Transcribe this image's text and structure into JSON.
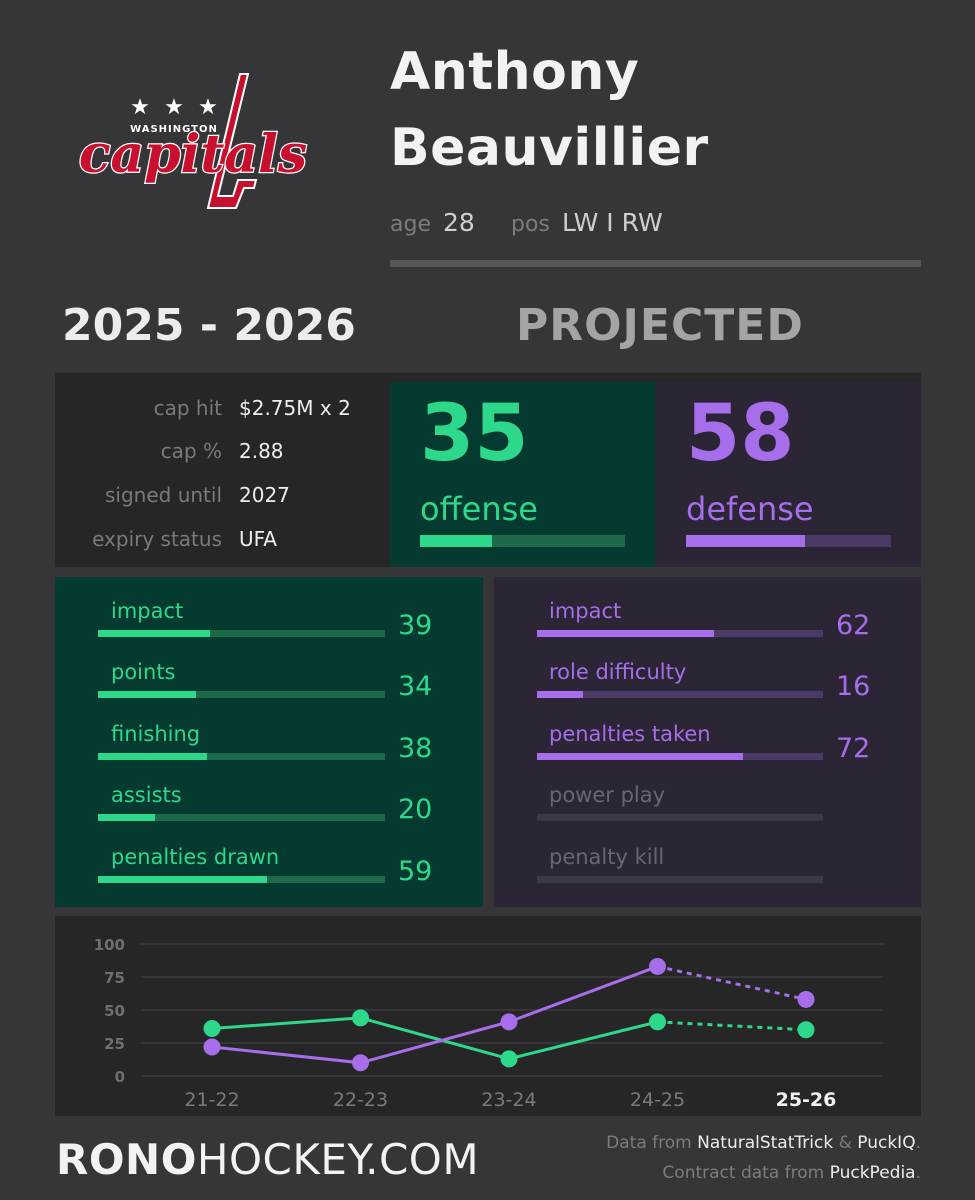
{
  "team": {
    "logo_text": "capitals",
    "logo_city": "WASHINGTON",
    "colors": {
      "red": "#c8102e",
      "white": "#ffffff",
      "navy": "#041e42"
    }
  },
  "player": {
    "first_name": "Anthony",
    "last_name": "Beauvillier",
    "age_label": "age",
    "age": "28",
    "pos_label": "pos",
    "pos": "LW I RW"
  },
  "season": "2025 - 2026",
  "projection_label": "PROJECTED",
  "contract": [
    {
      "label": "cap hit",
      "value": "$2.75M x 2"
    },
    {
      "label": "cap %",
      "value": "2.88"
    },
    {
      "label": "signed until",
      "value": "2027"
    },
    {
      "label": "expiry status",
      "value": "UFA"
    }
  ],
  "offense": {
    "value": "35",
    "label": "offense",
    "fill": 0.35,
    "metrics": [
      {
        "label": "impact",
        "value": "39",
        "fill": 0.39
      },
      {
        "label": "points",
        "value": "34",
        "fill": 0.34
      },
      {
        "label": "finishing",
        "value": "38",
        "fill": 0.38
      },
      {
        "label": "assists",
        "value": "20",
        "fill": 0.2
      },
      {
        "label": "penalties drawn",
        "value": "59",
        "fill": 0.59
      }
    ]
  },
  "defense": {
    "value": "58",
    "label": "defense",
    "fill": 0.58,
    "metrics": [
      {
        "label": "impact",
        "value": "62",
        "fill": 0.62
      },
      {
        "label": "role difficulty",
        "value": "16",
        "fill": 0.16
      },
      {
        "label": "penalties taken",
        "value": "72",
        "fill": 0.72
      },
      {
        "label": "power play",
        "value": "",
        "fill": 0
      },
      {
        "label": "penalty kill",
        "value": "",
        "fill": 0
      }
    ]
  },
  "colors": {
    "offense": "#2dd88a",
    "offense_track": "#1c6a49",
    "defense": "#a66eea",
    "defense_track": "#4b3a66",
    "inactive_label": "#6a6574",
    "inactive_track": "#3d3847"
  },
  "chart_data": {
    "type": "line",
    "categories": [
      "21-22",
      "22-23",
      "23-24",
      "24-25",
      "25-26"
    ],
    "yticks": [
      0,
      25,
      50,
      75,
      100
    ],
    "ylim": [
      0,
      100
    ],
    "grid": true,
    "projected_index": 4,
    "series": [
      {
        "key": "offense",
        "values": [
          36,
          44,
          13,
          41,
          35
        ],
        "color": "#2dd88a"
      },
      {
        "key": "defense",
        "values": [
          22,
          10,
          41,
          83,
          58
        ],
        "color": "#a66eea"
      }
    ]
  },
  "footer": {
    "brand_bold": "RONO",
    "brand_rest": "HOCKEY.COM",
    "source1_prefix": "Data from ",
    "source1_a": "NaturalStatTrick",
    "source1_mid": " & ",
    "source1_b": "PuckIQ",
    "source1_end": ".",
    "source2_prefix": "Contract data from ",
    "source2_a": "PuckPedia",
    "source2_end": "."
  }
}
